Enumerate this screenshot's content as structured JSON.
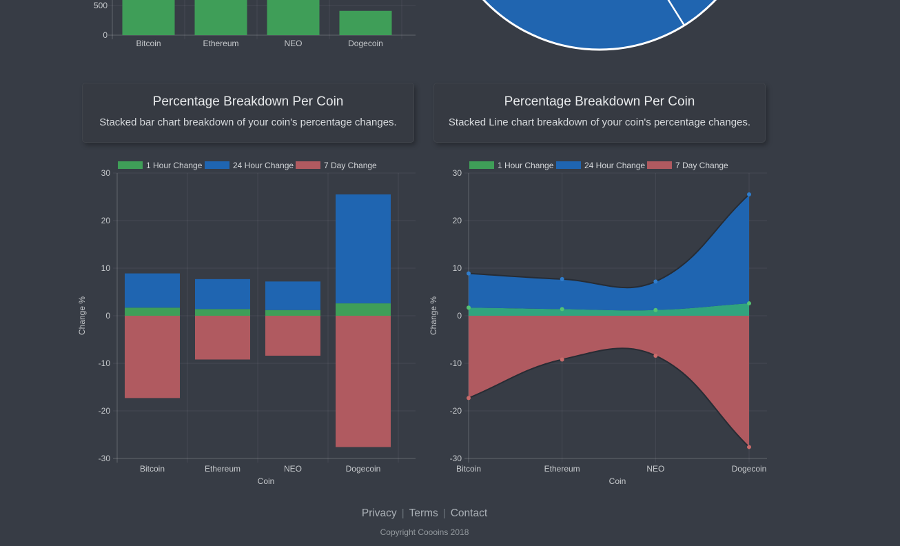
{
  "page": {
    "background": "#373c45"
  },
  "colors": {
    "green": "#3f9e58",
    "blue": "#1f65b1",
    "red": "#b05a60",
    "area_green": "#31a47e",
    "dot_green": "#55c473",
    "dot_blue": "#2f7dcd",
    "dot_red": "#ca6b6b",
    "pie_blue": "#2065b0",
    "pie_border": "#ffffff",
    "grid": "rgba(255,255,255,0.07)",
    "axis": "rgba(255,255,255,0.22)",
    "dark_edge": "#272c34"
  },
  "chart_data": [
    {
      "id": "top-coin-bar",
      "type": "bar",
      "categories": [
        "Bitcoin",
        "Ethereum",
        "NEO",
        "Dogecoin"
      ],
      "values": [
        null,
        null,
        null,
        410
      ],
      "bar_color": "#3f9e58",
      "yticks": [
        0,
        500
      ],
      "grid": true,
      "clipped": true,
      "note": "Chart cut off by top of viewport; Bitcoin, Ethereum and NEO bars extend beyond the visible area (>600), Dogecoin bar top ~410."
    },
    {
      "id": "portfolio-pie",
      "type": "pie",
      "values": null,
      "slice_color": "#2065b0",
      "border_color": "#ffffff",
      "visible_slice_boundary_deg": 58,
      "clipped": true,
      "note": "Only the bottom arc of the pie is visible; two adjacent slices share the same blue fill, separated by a white radius line near the top right."
    },
    {
      "id": "stacked-bar",
      "type": "bar",
      "stacked": true,
      "title": "Percentage Breakdown Per Coin",
      "subtitle": "Stacked bar chart breakdown of your coin's percentage changes.",
      "categories": [
        "Bitcoin",
        "Ethereum",
        "NEO",
        "Dogecoin"
      ],
      "series": [
        {
          "name": "1 Hour Change",
          "color": "#3f9e58",
          "values": [
            1.7,
            1.4,
            1.2,
            2.6
          ]
        },
        {
          "name": "24 Hour Change",
          "color": "#1f65b1",
          "values": [
            7.2,
            6.3,
            6.0,
            22.9
          ]
        },
        {
          "name": "7 Day Change",
          "color": "#b05a60",
          "values": [
            -17.3,
            -9.2,
            -8.4,
            -27.6
          ]
        }
      ],
      "xlabel": "Coin",
      "ylabel": "Change %",
      "ylim": [
        -30,
        30
      ],
      "ytick_step": 10,
      "legend_position": "top",
      "grid": true,
      "clipped_right": true
    },
    {
      "id": "stacked-line",
      "type": "area",
      "stacked": true,
      "smooth": true,
      "title": "Percentage Breakdown Per Coin",
      "subtitle": "Stacked Line chart breakdown of your coin's percentage changes.",
      "categories": [
        "Bitcoin",
        "Ethereum",
        "NEO",
        "Dogecoin"
      ],
      "series": [
        {
          "name": "1 Hour Change",
          "color": "#3f9e58",
          "fill": "#31a47e",
          "point_color": "#55c473",
          "values": [
            1.7,
            1.4,
            1.2,
            2.6
          ]
        },
        {
          "name": "24 Hour Change",
          "color": "#1f65b1",
          "fill": "#1f65b1",
          "point_color": "#2f7dcd",
          "values": [
            7.2,
            6.3,
            6.0,
            22.9
          ]
        },
        {
          "name": "7 Day Change",
          "color": "#b05a60",
          "fill": "#b05a60",
          "point_color": "#ca6b6b",
          "values": [
            -17.3,
            -9.2,
            -8.4,
            -27.6
          ]
        }
      ],
      "xlabel": "Coin",
      "ylabel": "Change %",
      "ylim": [
        -30,
        30
      ],
      "ytick_step": 10,
      "legend_position": "top",
      "grid": true,
      "clipped_right": true
    }
  ],
  "footer": {
    "links": [
      "Privacy",
      "Terms",
      "Contact"
    ],
    "separator": "|",
    "copyright": "Copyright Coooins 2018"
  }
}
